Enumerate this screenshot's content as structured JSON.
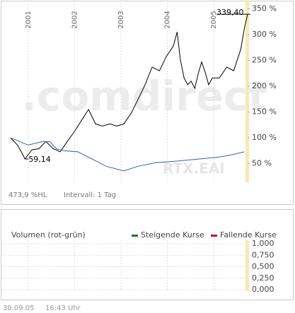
{
  "chart_data": [
    {
      "type": "line",
      "watermark": ".comdirect",
      "xlim": [
        2000.62,
        2005.73
      ],
      "xticks": [
        2001,
        2002,
        2003,
        2004,
        2005
      ],
      "ylim": [
        14,
        367
      ],
      "yticks": [
        {
          "value": 350,
          "label": "350 %"
        },
        {
          "value": 300,
          "label": "300 %"
        },
        {
          "value": 250,
          "label": "250 %"
        },
        {
          "value": 200,
          "label": "200 %"
        },
        {
          "value": 150,
          "label": "150 %"
        },
        {
          "value": 100,
          "label": "100 %"
        },
        {
          "value": 50,
          "label": "50 %"
        }
      ],
      "grid": "x",
      "series": [
        {
          "color": "#000000",
          "x": [
            2000.62,
            2000.77,
            2000.85,
            2000.93,
            2001.08,
            2001.23,
            2001.38,
            2001.54,
            2001.69,
            2001.84,
            2002.01,
            2002.15,
            2002.3,
            2002.45,
            2002.6,
            2002.76,
            2002.91,
            2003.06,
            2003.22,
            2003.37,
            2003.52,
            2003.67,
            2003.83,
            2003.98,
            2004.13,
            2004.21,
            2004.28,
            2004.36,
            2004.44,
            2004.51,
            2004.59,
            2004.67,
            2004.74,
            2004.82,
            2004.89,
            2004.97,
            2005.12,
            2005.28,
            2005.43,
            2005.58,
            2005.66,
            2005.73
          ],
          "values": [
            100,
            86,
            73,
            59.14,
            77,
            79,
            93,
            79,
            73,
            93,
            114,
            134,
            155,
            127,
            123,
            127,
            123,
            127,
            148,
            175,
            203,
            237,
            230,
            258,
            278,
            305,
            252,
            216,
            203,
            210,
            196,
            226,
            247,
            226,
            203,
            216,
            216,
            237,
            230,
            271,
            312,
            339.4
          ]
        },
        {
          "name": "RTX.EAI",
          "color": "#3a5ea8",
          "x": [
            2000.62,
            2001.0,
            2001.31,
            2001.46,
            2001.61,
            2001.77,
            2002.07,
            2002.38,
            2002.68,
            2003.06,
            2003.37,
            2003.75,
            2004.21,
            2004.67,
            2005.12,
            2005.43,
            2005.66
          ],
          "values": [
            100,
            86,
            93,
            93,
            79,
            75,
            73,
            59,
            45,
            36,
            45,
            52,
            55,
            59,
            63,
            68,
            73
          ]
        }
      ],
      "annotations": [
        {
          "x": 2005.73,
          "value": 339.4,
          "label": "339,40"
        },
        {
          "x": 2000.93,
          "value": 59.14,
          "label": "59,14"
        }
      ],
      "footer": [
        "473,9 %HL",
        "Intervall: 1 Tag"
      ]
    },
    {
      "type": "bar",
      "title": "Volumen (rot-grün)",
      "xlim": [
        2000.62,
        2005.73
      ],
      "xticks": [
        2001,
        2002,
        2003,
        2004,
        2005
      ],
      "ylim": [
        0,
        1
      ],
      "yticks": [
        {
          "value": 1,
          "label": "1,000"
        },
        {
          "value": 0.75,
          "label": "0,750"
        },
        {
          "value": 0.5,
          "label": "0,500"
        },
        {
          "value": 0.25,
          "label": "0,250"
        },
        {
          "value": 0,
          "label": "0,000"
        }
      ],
      "grid": "both",
      "legend": [
        {
          "name": "Steigende Kurse",
          "color": "#1a7a2a"
        },
        {
          "name": "Fallende Kurse",
          "color": "#c01818"
        }
      ]
    }
  ],
  "timestamp": [
    "30.09.05",
    "16:43 Uhr"
  ]
}
